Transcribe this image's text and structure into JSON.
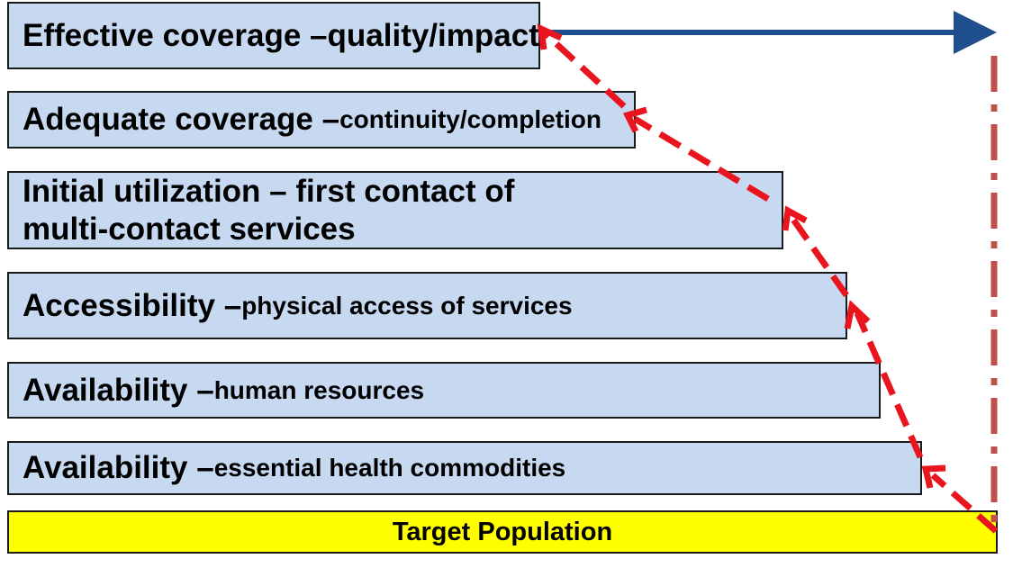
{
  "levels": {
    "effective": {
      "main": "Effective coverage – ",
      "sub": "quality/impact"
    },
    "adequate": {
      "main": "Adequate coverage – ",
      "sub": "continuity/completion"
    },
    "initial": {
      "line1": "Initial utilization – first contact of",
      "line2": "multi-contact services"
    },
    "accessibility": {
      "main": "Accessibility – ",
      "sub": "physical access of services"
    },
    "availability_hr": {
      "main": "Availability – ",
      "sub": "human resources"
    },
    "availability_commodities": {
      "main": "Availability – ",
      "sub": "essential health commodities"
    }
  },
  "target": {
    "label": "Target Population"
  },
  "colors": {
    "bar_fill": "#c6d9f1",
    "target_fill": "#ffff00",
    "arrow_blue": "#1f4e8c",
    "dash_red": "#e8141e",
    "dashdot_red": "#c0504d"
  }
}
